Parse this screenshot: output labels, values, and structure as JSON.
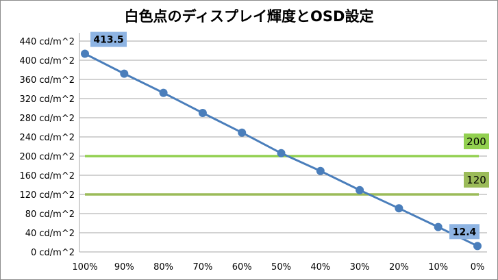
{
  "chart_data": {
    "type": "line",
    "title": "白色点のディスプレイ輝度とOSD設定",
    "xlabel": "",
    "ylabel": "",
    "categories": [
      "100%",
      "90%",
      "80%",
      "70%",
      "60%",
      "50%",
      "40%",
      "30%",
      "20%",
      "10%",
      "0%"
    ],
    "series": [
      {
        "values": [
          413.5,
          372,
          332,
          290,
          249,
          206,
          169,
          129,
          91,
          52,
          12.4
        ],
        "color": "#4a7ebb"
      }
    ],
    "y_ticks": [
      "0 cd/m^2",
      "40 cd/m^2",
      "80 cd/m^2",
      "120 cd/m^2",
      "160 cd/m^2",
      "200 cd/m^2",
      "240 cd/m^2",
      "280 cd/m^2",
      "320 cd/m^2",
      "360 cd/m^2",
      "400 cd/m^2",
      "440 cd/m^2"
    ],
    "ylim": [
      0,
      440
    ],
    "y_step": 40,
    "grid": "horizontal",
    "data_labels": [
      {
        "index": 0,
        "text": "413.5"
      },
      {
        "index": 10,
        "text": "12.4"
      }
    ],
    "reference_lines": [
      {
        "value": 200,
        "label": "200",
        "color": "#92d050"
      },
      {
        "value": 120,
        "label": "120",
        "color": "#9bbb59"
      }
    ],
    "colors": {
      "line": "#4a7ebb",
      "data_label_bg": "#8eb4e3",
      "grid": "#a6a6a6"
    }
  }
}
